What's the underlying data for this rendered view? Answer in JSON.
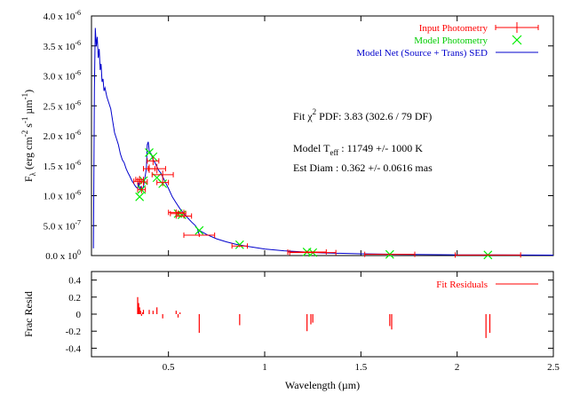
{
  "colors": {
    "input_photometry": "#ff0000",
    "model_photometry": "#00ee00",
    "model_sed": "#0000cc",
    "residuals": "#ff0000",
    "axes": "#000000"
  },
  "chart_data": [
    {
      "type": "scatter",
      "panel": "main",
      "xlim": [
        0.1,
        2.5
      ],
      "ylim": [
        0,
        4e-06
      ],
      "grid": false,
      "legend_placement": "top-right",
      "yticks": [
        {
          "value": 0.0,
          "label": "0.0 x 10",
          "exp": "0"
        },
        {
          "value": 5e-07,
          "label": "5.0 x 10",
          "exp": "-7"
        },
        {
          "value": 1e-06,
          "label": "1.0 x 10",
          "exp": "-6"
        },
        {
          "value": 1.5e-06,
          "label": "1.5 x 10",
          "exp": "-6"
        },
        {
          "value": 2e-06,
          "label": "2.0 x 10",
          "exp": "-6"
        },
        {
          "value": 2.5e-06,
          "label": "2.5 x 10",
          "exp": "-6"
        },
        {
          "value": 3e-06,
          "label": "3.0 x 10",
          "exp": "-6"
        },
        {
          "value": 3.5e-06,
          "label": "3.5 x 10",
          "exp": "-6"
        },
        {
          "value": 4e-06,
          "label": "4.0 x 10",
          "exp": "-6"
        }
      ],
      "legend": [
        {
          "key": "input",
          "label": "Input Photometry"
        },
        {
          "key": "model",
          "label": "Model Photometry"
        },
        {
          "key": "sed",
          "label": "Model Net (Source + Trans) SED"
        }
      ],
      "series": [
        {
          "name": "Input Photometry",
          "key": "input",
          "points": [
            {
              "x": 0.34,
              "y": 1.24e-06,
              "xerr": 0.02,
              "yerr": 6e-08
            },
            {
              "x": 0.35,
              "y": 1.27e-06,
              "xerr": 0.02,
              "yerr": 6e-08
            },
            {
              "x": 0.36,
              "y": 1.1e-06,
              "xerr": 0.02,
              "yerr": 6e-08
            },
            {
              "x": 0.37,
              "y": 1.23e-06,
              "xerr": 0.02,
              "yerr": 6e-08
            },
            {
              "x": 0.4,
              "y": 1.45e-06,
              "xerr": 0.03,
              "yerr": 7e-08
            },
            {
              "x": 0.42,
              "y": 1.58e-06,
              "xerr": 0.03,
              "yerr": 7e-08
            },
            {
              "x": 0.44,
              "y": 1.45e-06,
              "xerr": 0.045,
              "yerr": 8e-08
            },
            {
              "x": 0.47,
              "y": 1.35e-06,
              "xerr": 0.055,
              "yerr": 7e-08
            },
            {
              "x": 0.47,
              "y": 1.22e-06,
              "xerr": 0.03,
              "yerr": 6e-08
            },
            {
              "x": 0.54,
              "y": 7.2e-07,
              "xerr": 0.04,
              "yerr": 5e-08
            },
            {
              "x": 0.55,
              "y": 7e-07,
              "xerr": 0.04,
              "yerr": 5e-08
            },
            {
              "x": 0.58,
              "y": 6.6e-07,
              "xerr": 0.04,
              "yerr": 4e-08
            },
            {
              "x": 0.66,
              "y": 3.4e-07,
              "xerr": 0.08,
              "yerr": 3e-08
            },
            {
              "x": 0.87,
              "y": 1.6e-07,
              "xerr": 0.04,
              "yerr": 2e-08
            },
            {
              "x": 1.22,
              "y": 6e-08,
              "xerr": 0.1,
              "yerr": 2e-08
            },
            {
              "x": 1.25,
              "y": 5e-08,
              "xerr": 0.12,
              "yerr": 2e-08
            },
            {
              "x": 1.65,
              "y": 2e-08,
              "xerr": 0.13,
              "yerr": 1e-08
            },
            {
              "x": 2.16,
              "y": 1e-08,
              "xerr": 0.17,
              "yerr": 1e-08
            }
          ]
        },
        {
          "name": "Model Photometry",
          "key": "model",
          "points": [
            {
              "x": 0.35,
              "y": 9.8e-07
            },
            {
              "x": 0.36,
              "y": 1.1e-06
            },
            {
              "x": 0.37,
              "y": 1.25e-06
            },
            {
              "x": 0.4,
              "y": 1.72e-06
            },
            {
              "x": 0.42,
              "y": 1.65e-06
            },
            {
              "x": 0.44,
              "y": 1.3e-06
            },
            {
              "x": 0.47,
              "y": 1.2e-06
            },
            {
              "x": 0.55,
              "y": 7e-07
            },
            {
              "x": 0.57,
              "y": 6.8e-07
            },
            {
              "x": 0.66,
              "y": 4.2e-07
            },
            {
              "x": 0.87,
              "y": 1.8e-07
            },
            {
              "x": 1.22,
              "y": 6e-08
            },
            {
              "x": 1.25,
              "y": 5e-08
            },
            {
              "x": 1.65,
              "y": 2e-08
            },
            {
              "x": 2.16,
              "y": 1e-08
            }
          ]
        },
        {
          "name": "Model Net (Source + Trans) SED",
          "key": "sed",
          "type": "line",
          "x": [
            0.11,
            0.115,
            0.12,
            0.125,
            0.13,
            0.135,
            0.14,
            0.145,
            0.15,
            0.155,
            0.16,
            0.165,
            0.17,
            0.18,
            0.19,
            0.2,
            0.21,
            0.22,
            0.23,
            0.24,
            0.25,
            0.26,
            0.27,
            0.28,
            0.29,
            0.3,
            0.31,
            0.32,
            0.33,
            0.34,
            0.345,
            0.35,
            0.355,
            0.36,
            0.365,
            0.37,
            0.375,
            0.38,
            0.385,
            0.39,
            0.395,
            0.4,
            0.405,
            0.41,
            0.42,
            0.43,
            0.44,
            0.45,
            0.46,
            0.48,
            0.5,
            0.52,
            0.54,
            0.56,
            0.58,
            0.6,
            0.62,
            0.64,
            0.65,
            0.656,
            0.66,
            0.7,
            0.75,
            0.8,
            0.85,
            0.9,
            1.0,
            1.1,
            1.2,
            1.3,
            1.5,
            1.7,
            2.0,
            2.2,
            2.5
          ],
          "y": [
            1.2e-07,
            2.8e-06,
            3.8e-06,
            3.5e-06,
            3.65e-06,
            3.3e-06,
            3.45e-06,
            3.1e-06,
            3.2e-06,
            2.9e-06,
            2.95e-06,
            2.75e-06,
            2.8e-06,
            2.65e-06,
            2.55e-06,
            2.45e-06,
            2.25e-06,
            2.05e-06,
            1.95e-06,
            1.85e-06,
            1.7e-06,
            1.6e-06,
            1.55e-06,
            1.45e-06,
            1.38e-06,
            1.32e-06,
            1.25e-06,
            1.2e-06,
            1.15e-06,
            1.12e-06,
            1.22e-06,
            1.1e-06,
            1.15e-06,
            1.12e-06,
            1.12e-06,
            1.15e-06,
            1.25e-06,
            1.35e-06,
            1.45e-06,
            1.85e-06,
            1.9e-06,
            1.75e-06,
            1.72e-06,
            1.7e-06,
            1.6e-06,
            1.55e-06,
            1.48e-06,
            1.42e-06,
            1.38e-06,
            1.25e-06,
            1.12e-06,
            9.8e-07,
            8.8e-07,
            7.8e-07,
            7e-07,
            6.3e-07,
            5.6e-07,
            5e-07,
            4.5e-07,
            3.8e-07,
            4.2e-07,
            3.5e-07,
            2.8e-07,
            2.3e-07,
            1.9e-07,
            1.6e-07,
            1.1e-07,
            8e-08,
            6e-08,
            4.5e-08,
            3e-08,
            2e-08,
            1.2e-08,
            1e-08,
            8e-09
          ]
        }
      ],
      "xlabel": "Wavelength (µm)",
      "ylabel": {
        "main": "F",
        "sub": "λ",
        "text": " (erg cm",
        "sup1": "-2",
        "s": " s",
        "sup2": "-1",
        "mu": " µm",
        "sup3": "-1",
        "close": ")"
      },
      "annotations": {
        "fit": {
          "prefix": "Fit χ",
          "sup": "2",
          "suffix": " PDF: 3.83 (302.6 / 79 DF)"
        },
        "teff": {
          "prefix": "Model T",
          "sub": "eff",
          "suffix": " : 11749 +/- 1000 K"
        },
        "diam": {
          "text": "Est Diam : 0.362 +/- 0.0616 mas"
        }
      }
    },
    {
      "type": "bar",
      "panel": "residuals",
      "xlim": [
        0.1,
        2.5
      ],
      "ylim": [
        -0.5,
        0.5
      ],
      "ylabel": "Frac Resid",
      "legend": [
        {
          "key": "resid",
          "label": "Fit Residuals"
        }
      ],
      "yticks": [
        {
          "value": 0.4,
          "label": "0.4"
        },
        {
          "value": 0.2,
          "label": "0.2"
        },
        {
          "value": 0.0,
          "label": "0"
        },
        {
          "value": -0.2,
          "label": "-0.2"
        },
        {
          "value": -0.4,
          "label": "-0.4"
        }
      ],
      "xticks": [
        {
          "value": 0.5,
          "label": "0.5"
        },
        {
          "value": 1.0,
          "label": "1"
        },
        {
          "value": 1.5,
          "label": "1.5"
        },
        {
          "value": 2.0,
          "label": "2"
        },
        {
          "value": 2.5,
          "label": "2.5"
        }
      ],
      "series": [
        {
          "name": "Fit Residuals",
          "x": [
            0.34,
            0.345,
            0.35,
            0.355,
            0.36,
            0.365,
            0.37,
            0.4,
            0.42,
            0.44,
            0.47,
            0.54,
            0.55,
            0.56,
            0.66,
            0.87,
            1.22,
            1.24,
            1.25,
            1.65,
            1.66,
            2.15,
            2.17
          ],
          "values": [
            0.2,
            0.13,
            0.08,
            0.04,
            -0.02,
            0.02,
            0.05,
            0.05,
            0.04,
            0.08,
            -0.05,
            0.04,
            -0.04,
            0.02,
            -0.22,
            -0.13,
            -0.2,
            -0.12,
            -0.1,
            -0.14,
            -0.18,
            -0.28,
            -0.22
          ]
        }
      ]
    }
  ]
}
